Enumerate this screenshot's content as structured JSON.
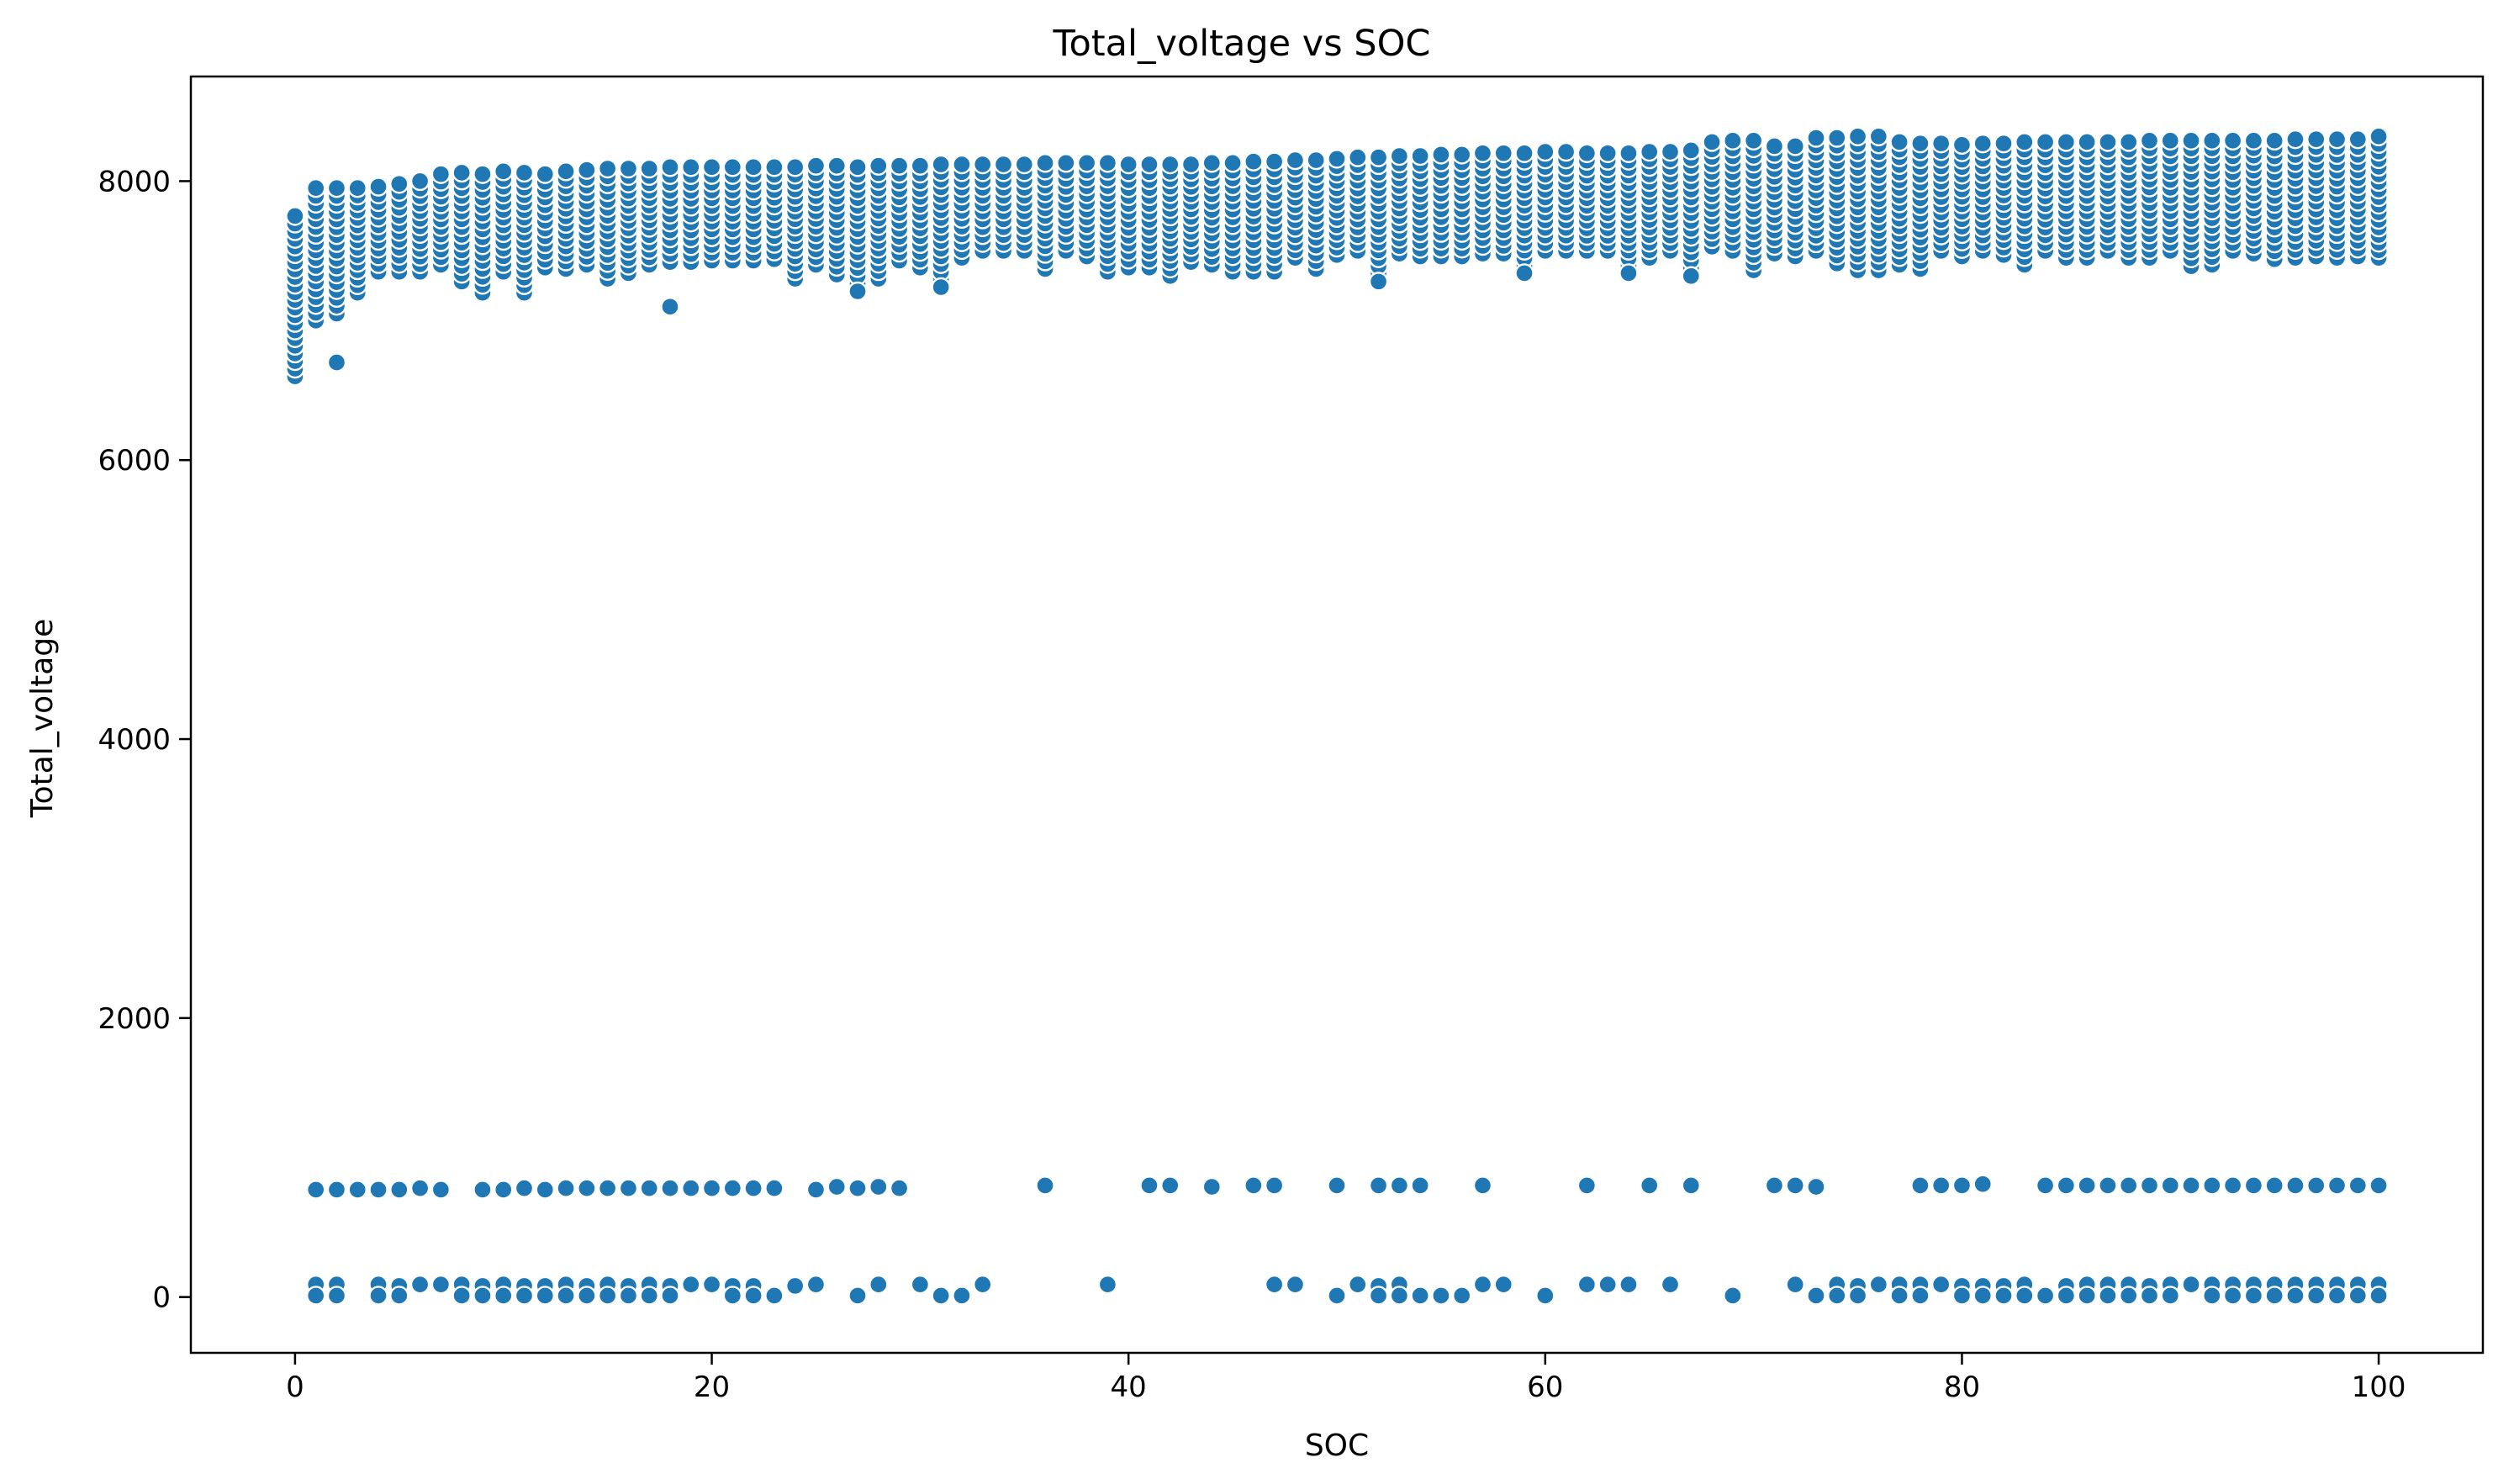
{
  "chart_data": {
    "type": "scatter",
    "title": "Total_voltage vs SOC",
    "xlabel": "SOC",
    "ylabel": "Total_voltage",
    "xlim": [
      -5,
      105
    ],
    "ylim": [
      -400,
      8750
    ],
    "x_ticks": [
      0,
      20,
      40,
      60,
      80,
      100
    ],
    "y_ticks": [
      0,
      2000,
      4000,
      6000,
      8000
    ],
    "x_tick_labels": [
      "0",
      "20",
      "40",
      "60",
      "80",
      "100"
    ],
    "y_tick_labels": [
      "0",
      "2000",
      "4000",
      "6000",
      "8000"
    ],
    "grid": false,
    "legend": "none",
    "color": "#1f77b4",
    "x_step": 1,
    "main_band": [
      [
        0,
        6600,
        7750
      ],
      [
        1,
        7000,
        7950
      ],
      [
        2,
        7050,
        7950
      ],
      [
        3,
        7200,
        7950
      ],
      [
        4,
        7350,
        7960
      ],
      [
        5,
        7350,
        7980
      ],
      [
        6,
        7350,
        8000
      ],
      [
        7,
        7400,
        8050
      ],
      [
        8,
        7280,
        8060
      ],
      [
        9,
        7200,
        8050
      ],
      [
        10,
        7350,
        8070
      ],
      [
        11,
        7200,
        8060
      ],
      [
        12,
        7380,
        8050
      ],
      [
        13,
        7370,
        8070
      ],
      [
        14,
        7400,
        8080
      ],
      [
        15,
        7300,
        8090
      ],
      [
        16,
        7340,
        8090
      ],
      [
        17,
        7400,
        8090
      ],
      [
        18,
        7420,
        8100
      ],
      [
        19,
        7420,
        8100
      ],
      [
        20,
        7430,
        8100
      ],
      [
        21,
        7430,
        8100
      ],
      [
        22,
        7430,
        8100
      ],
      [
        23,
        7440,
        8100
      ],
      [
        24,
        7300,
        8100
      ],
      [
        25,
        7400,
        8110
      ],
      [
        26,
        7330,
        8110
      ],
      [
        27,
        7210,
        8100
      ],
      [
        28,
        7300,
        8110
      ],
      [
        29,
        7430,
        8110
      ],
      [
        30,
        7380,
        8110
      ],
      [
        31,
        7240,
        8120
      ],
      [
        32,
        7450,
        8120
      ],
      [
        33,
        7500,
        8120
      ],
      [
        34,
        7500,
        8120
      ],
      [
        35,
        7500,
        8120
      ],
      [
        36,
        7370,
        8130
      ],
      [
        37,
        7500,
        8130
      ],
      [
        38,
        7460,
        8130
      ],
      [
        39,
        7350,
        8130
      ],
      [
        40,
        7380,
        8120
      ],
      [
        41,
        7380,
        8120
      ],
      [
        42,
        7320,
        8120
      ],
      [
        43,
        7420,
        8120
      ],
      [
        44,
        7400,
        8130
      ],
      [
        45,
        7350,
        8130
      ],
      [
        46,
        7350,
        8140
      ],
      [
        47,
        7350,
        8140
      ],
      [
        48,
        7450,
        8150
      ],
      [
        49,
        7370,
        8150
      ],
      [
        50,
        7470,
        8160
      ],
      [
        51,
        7500,
        8170
      ],
      [
        52,
        7280,
        8170
      ],
      [
        53,
        7480,
        8180
      ],
      [
        54,
        7460,
        8180
      ],
      [
        55,
        7460,
        8190
      ],
      [
        56,
        7460,
        8190
      ],
      [
        57,
        7480,
        8200
      ],
      [
        58,
        7480,
        8200
      ],
      [
        59,
        7340,
        8200
      ],
      [
        60,
        7500,
        8210
      ],
      [
        61,
        7500,
        8210
      ],
      [
        62,
        7500,
        8200
      ],
      [
        63,
        7500,
        8200
      ],
      [
        64,
        7340,
        8200
      ],
      [
        65,
        7450,
        8210
      ],
      [
        66,
        7500,
        8210
      ],
      [
        67,
        7320,
        8220
      ],
      [
        68,
        7530,
        8280
      ],
      [
        69,
        7500,
        8290
      ],
      [
        70,
        7360,
        8290
      ],
      [
        71,
        7480,
        8250
      ],
      [
        72,
        7460,
        8250
      ],
      [
        73,
        7500,
        8310
      ],
      [
        74,
        7410,
        8310
      ],
      [
        75,
        7360,
        8320
      ],
      [
        76,
        7360,
        8320
      ],
      [
        77,
        7400,
        8280
      ],
      [
        78,
        7370,
        8270
      ],
      [
        79,
        7500,
        8270
      ],
      [
        80,
        7460,
        8260
      ],
      [
        81,
        7500,
        8270
      ],
      [
        82,
        7470,
        8270
      ],
      [
        83,
        7400,
        8280
      ],
      [
        84,
        7500,
        8280
      ],
      [
        85,
        7450,
        8280
      ],
      [
        86,
        7450,
        8280
      ],
      [
        87,
        7500,
        8280
      ],
      [
        88,
        7450,
        8280
      ],
      [
        89,
        7450,
        8290
      ],
      [
        90,
        7500,
        8290
      ],
      [
        91,
        7390,
        8290
      ],
      [
        92,
        7400,
        8290
      ],
      [
        93,
        7500,
        8290
      ],
      [
        94,
        7480,
        8290
      ],
      [
        95,
        7440,
        8290
      ],
      [
        96,
        7450,
        8300
      ],
      [
        97,
        7460,
        8300
      ],
      [
        98,
        7450,
        8300
      ],
      [
        99,
        7460,
        8300
      ],
      [
        100,
        7450,
        8320
      ]
    ],
    "outliers": [
      [
        2,
        6700
      ],
      [
        18,
        7100
      ],
      [
        27,
        7210
      ],
      [
        31,
        7240
      ],
      [
        52,
        7280
      ],
      [
        59,
        7340
      ],
      [
        64,
        7340
      ],
      [
        67,
        7320
      ]
    ],
    "cluster_800": [
      [
        1,
        770
      ],
      [
        2,
        770
      ],
      [
        3,
        770
      ],
      [
        4,
        770
      ],
      [
        5,
        770
      ],
      [
        6,
        780
      ],
      [
        7,
        770
      ],
      [
        9,
        770
      ],
      [
        10,
        770
      ],
      [
        11,
        780
      ],
      [
        12,
        770
      ],
      [
        13,
        780
      ],
      [
        14,
        780
      ],
      [
        15,
        780
      ],
      [
        16,
        780
      ],
      [
        17,
        780
      ],
      [
        18,
        780
      ],
      [
        19,
        780
      ],
      [
        20,
        780
      ],
      [
        21,
        780
      ],
      [
        22,
        780
      ],
      [
        23,
        780
      ],
      [
        25,
        770
      ],
      [
        26,
        790
      ],
      [
        27,
        780
      ],
      [
        28,
        790
      ],
      [
        29,
        780
      ],
      [
        36,
        800
      ],
      [
        41,
        800
      ],
      [
        42,
        800
      ],
      [
        44,
        790
      ],
      [
        46,
        800
      ],
      [
        47,
        800
      ],
      [
        50,
        800
      ],
      [
        52,
        800
      ],
      [
        53,
        800
      ],
      [
        54,
        800
      ],
      [
        57,
        800
      ],
      [
        62,
        800
      ],
      [
        65,
        800
      ],
      [
        67,
        800
      ],
      [
        71,
        800
      ],
      [
        72,
        800
      ],
      [
        73,
        790
      ],
      [
        78,
        800
      ],
      [
        79,
        800
      ],
      [
        80,
        800
      ],
      [
        81,
        810
      ],
      [
        84,
        800
      ],
      [
        85,
        800
      ],
      [
        86,
        800
      ],
      [
        87,
        800
      ],
      [
        88,
        800
      ],
      [
        89,
        800
      ],
      [
        90,
        800
      ],
      [
        91,
        800
      ],
      [
        92,
        800
      ],
      [
        93,
        800
      ],
      [
        94,
        800
      ],
      [
        95,
        800
      ],
      [
        96,
        800
      ],
      [
        97,
        800
      ],
      [
        98,
        800
      ],
      [
        99,
        800
      ],
      [
        100,
        800
      ]
    ],
    "cluster_near_zero": [
      [
        1,
        90
      ],
      [
        1,
        10
      ],
      [
        2,
        90
      ],
      [
        2,
        10
      ],
      [
        4,
        90
      ],
      [
        4,
        10
      ],
      [
        5,
        80
      ],
      [
        5,
        10
      ],
      [
        6,
        90
      ],
      [
        7,
        90
      ],
      [
        8,
        90
      ],
      [
        8,
        10
      ],
      [
        9,
        80
      ],
      [
        9,
        10
      ],
      [
        10,
        90
      ],
      [
        10,
        10
      ],
      [
        11,
        80
      ],
      [
        11,
        10
      ],
      [
        12,
        80
      ],
      [
        12,
        10
      ],
      [
        13,
        90
      ],
      [
        13,
        10
      ],
      [
        14,
        80
      ],
      [
        14,
        10
      ],
      [
        15,
        90
      ],
      [
        15,
        10
      ],
      [
        16,
        80
      ],
      [
        16,
        10
      ],
      [
        17,
        90
      ],
      [
        17,
        10
      ],
      [
        18,
        80
      ],
      [
        18,
        10
      ],
      [
        19,
        90
      ],
      [
        20,
        90
      ],
      [
        21,
        80
      ],
      [
        21,
        10
      ],
      [
        22,
        80
      ],
      [
        22,
        10
      ],
      [
        23,
        10
      ],
      [
        24,
        80
      ],
      [
        25,
        90
      ],
      [
        27,
        10
      ],
      [
        28,
        90
      ],
      [
        30,
        90
      ],
      [
        31,
        10
      ],
      [
        32,
        10
      ],
      [
        33,
        90
      ],
      [
        39,
        90
      ],
      [
        47,
        90
      ],
      [
        48,
        90
      ],
      [
        50,
        10
      ],
      [
        51,
        90
      ],
      [
        52,
        80
      ],
      [
        52,
        10
      ],
      [
        53,
        90
      ],
      [
        53,
        10
      ],
      [
        54,
        10
      ],
      [
        55,
        10
      ],
      [
        56,
        10
      ],
      [
        57,
        90
      ],
      [
        58,
        90
      ],
      [
        60,
        10
      ],
      [
        62,
        90
      ],
      [
        63,
        90
      ],
      [
        64,
        90
      ],
      [
        66,
        90
      ],
      [
        69,
        10
      ],
      [
        72,
        90
      ],
      [
        73,
        10
      ],
      [
        74,
        90
      ],
      [
        74,
        10
      ],
      [
        75,
        80
      ],
      [
        75,
        10
      ],
      [
        76,
        90
      ],
      [
        77,
        90
      ],
      [
        77,
        10
      ],
      [
        78,
        90
      ],
      [
        78,
        10
      ],
      [
        79,
        90
      ],
      [
        80,
        80
      ],
      [
        80,
        10
      ],
      [
        81,
        80
      ],
      [
        81,
        10
      ],
      [
        82,
        80
      ],
      [
        82,
        10
      ],
      [
        83,
        90
      ],
      [
        83,
        10
      ],
      [
        84,
        10
      ],
      [
        85,
        80
      ],
      [
        85,
        10
      ],
      [
        86,
        90
      ],
      [
        86,
        10
      ],
      [
        87,
        90
      ],
      [
        87,
        10
      ],
      [
        88,
        90
      ],
      [
        88,
        10
      ],
      [
        89,
        80
      ],
      [
        89,
        10
      ],
      [
        90,
        90
      ],
      [
        90,
        10
      ],
      [
        91,
        90
      ],
      [
        92,
        90
      ],
      [
        92,
        10
      ],
      [
        93,
        90
      ],
      [
        93,
        10
      ],
      [
        94,
        90
      ],
      [
        94,
        10
      ],
      [
        95,
        90
      ],
      [
        95,
        10
      ],
      [
        96,
        90
      ],
      [
        96,
        10
      ],
      [
        97,
        90
      ],
      [
        97,
        10
      ],
      [
        98,
        90
      ],
      [
        98,
        10
      ],
      [
        99,
        90
      ],
      [
        99,
        10
      ],
      [
        100,
        90
      ],
      [
        100,
        10
      ]
    ]
  }
}
